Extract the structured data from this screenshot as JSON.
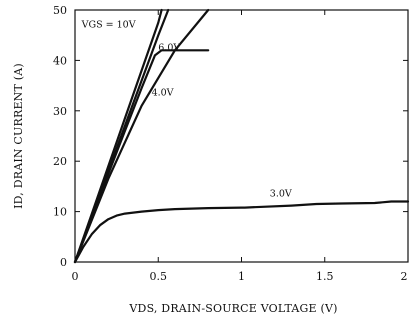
{
  "chart_data": {
    "type": "line",
    "title": "",
    "xlabel": "VDS, DRAIN-SOURCE VOLTAGE (V)",
    "ylabel": "ID, DRAIN CURRENT (A)",
    "xlim": [
      0,
      2
    ],
    "ylim": [
      0,
      50
    ],
    "xticks": [
      0,
      0.5,
      1,
      1.5,
      2
    ],
    "xtick_labels": [
      "0",
      "0.5",
      "1",
      "1.5",
      "2"
    ],
    "yticks": [
      0,
      10,
      20,
      30,
      40,
      50
    ],
    "ytick_labels": [
      "0",
      "10",
      "20",
      "30",
      "40",
      "50"
    ],
    "grid": false,
    "annotations": [
      {
        "text": "VGS = 10V",
        "x": 0.04,
        "y": 46.5
      },
      {
        "text": "6.0V",
        "x": 0.5,
        "y": 42.0
      },
      {
        "text": "4.0V",
        "x": 0.46,
        "y": 33.0
      },
      {
        "text": "3.0V",
        "x": 1.17,
        "y": 13.0
      }
    ],
    "series": [
      {
        "x": [
          0,
          0.1,
          0.2,
          0.3,
          0.4,
          0.5,
          0.56
        ],
        "y": [
          0,
          9,
          18,
          27,
          36,
          45,
          50
        ]
      },
      {
        "x": [
          0,
          0.1,
          0.2,
          0.3,
          0.4,
          0.5,
          0.52
        ],
        "y": [
          0,
          9.5,
          19,
          28.5,
          38,
          47.5,
          50
        ]
      },
      {
        "x": [
          0,
          0.1,
          0.2,
          0.3,
          0.4,
          0.48,
          0.52,
          0.6,
          0.7,
          0.8
        ],
        "y": [
          0,
          8.8,
          17.5,
          26,
          34.5,
          41,
          42,
          42,
          42,
          42
        ]
      },
      {
        "x": [
          0,
          0.2,
          0.4,
          0.6,
          0.8
        ],
        "y": [
          0,
          16.5,
          31,
          42,
          50
        ]
      },
      {
        "x": [
          0,
          0.05,
          0.1,
          0.15,
          0.2,
          0.25,
          0.3,
          0.4,
          0.5,
          0.6,
          0.8,
          1.0,
          1.02,
          1.3,
          1.45,
          1.6,
          1.8,
          1.9,
          2.0
        ],
        "y": [
          0,
          3,
          5.5,
          7.3,
          8.5,
          9.2,
          9.6,
          10,
          10.3,
          10.5,
          10.7,
          10.8,
          10.8,
          11.2,
          11.5,
          11.6,
          11.7,
          12,
          12
        ]
      }
    ]
  }
}
